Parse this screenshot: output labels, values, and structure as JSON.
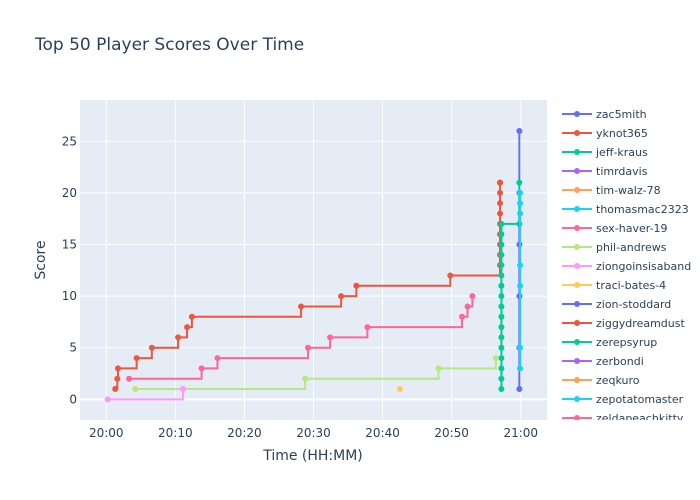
{
  "chart_data": {
    "type": "line",
    "title": "Top 50 Player Scores Over Time",
    "xlabel": "Time (HH:MM)",
    "ylabel": "Score",
    "x_ticks": [
      "20:00",
      "20:10",
      "20:20",
      "20:30",
      "20:40",
      "20:50",
      "21:00"
    ],
    "y_ticks": [
      0,
      5,
      10,
      15,
      20,
      25
    ],
    "x_range_minutes": [
      -3.8,
      63.8
    ],
    "y_range": [
      -2,
      29
    ],
    "x_unit": "minutes after 20:00",
    "line_shape": "step-after",
    "grid": true,
    "legend_position": "right",
    "series": [
      {
        "name": "zac5mith",
        "color": "#636efa",
        "x": [
          59.8,
          59.8,
          59.8,
          59.8,
          59.8,
          59.8
        ],
        "y": [
          1,
          5,
          10,
          15,
          20,
          26
        ]
      },
      {
        "name": "yknot365",
        "color": "#EF553B",
        "x": [
          1.3,
          1.6,
          1.7,
          4.4,
          6.6,
          10.4,
          11.7,
          12.4,
          28.2,
          34.0,
          36.2,
          49.8,
          57.0,
          57.0,
          57.0,
          57.0,
          57.0,
          57.0,
          57.0,
          57.0,
          57.0,
          57.0
        ],
        "y": [
          1,
          2,
          3,
          4,
          5,
          6,
          7,
          8,
          9,
          10,
          11,
          12,
          13,
          14,
          15,
          16,
          17,
          18,
          19,
          20,
          21,
          21
        ]
      },
      {
        "name": "jeff-kraus",
        "color": "#00cc96",
        "x": [
          57.2,
          57.2,
          57.2,
          57.2,
          57.2,
          57.2,
          57.2,
          57.2,
          57.2,
          57.2,
          57.2,
          57.2,
          57.2,
          57.2,
          57.2,
          57.2,
          57.2,
          59.8,
          59.8
        ],
        "y": [
          1,
          2,
          3,
          4,
          5,
          6,
          7,
          8,
          9,
          10,
          11,
          12,
          13,
          14,
          15,
          16,
          17,
          17,
          21
        ]
      },
      {
        "name": "timrdavis",
        "color": "#ab63fa",
        "x": [],
        "y": []
      },
      {
        "name": "tim-walz-78",
        "color": "#FFA15A",
        "x": [],
        "y": []
      },
      {
        "name": "thomasmac2323",
        "color": "#19d3f3",
        "x": [
          59.9,
          59.9,
          59.9,
          59.9,
          59.9,
          59.9,
          59.9
        ],
        "y": [
          3,
          5,
          11,
          13,
          18,
          19,
          20
        ]
      },
      {
        "name": "sex-haver-19",
        "color": "#FF6692",
        "x": [
          3.3,
          13.8,
          16.1,
          29.2,
          32.4,
          37.8,
          51.5,
          52.3,
          53.0
        ],
        "y": [
          2,
          3,
          4,
          5,
          6,
          7,
          8,
          9,
          10
        ]
      },
      {
        "name": "phil-andrews",
        "color": "#B6E880",
        "x": [
          4.2,
          28.8,
          48.1,
          56.4
        ],
        "y": [
          1,
          2,
          3,
          4
        ]
      },
      {
        "name": "ziongoinsisaband",
        "color": "#FF97FF",
        "x": [
          0.2,
          11.1
        ],
        "y": [
          0,
          1
        ]
      },
      {
        "name": "traci-bates-4",
        "color": "#FECB52",
        "x": [
          42.5
        ],
        "y": [
          1
        ]
      },
      {
        "name": "zion-stoddard",
        "color": "#636efa",
        "x": [],
        "y": []
      },
      {
        "name": "ziggydreamdust",
        "color": "#EF553B",
        "x": [],
        "y": []
      },
      {
        "name": "zerepsyrup",
        "color": "#00cc96",
        "x": [],
        "y": []
      },
      {
        "name": "zerbondi",
        "color": "#ab63fa",
        "x": [],
        "y": []
      },
      {
        "name": "zeqkuro",
        "color": "#FFA15A",
        "x": [],
        "y": []
      },
      {
        "name": "zepotatomaster",
        "color": "#19d3f3",
        "x": [],
        "y": []
      },
      {
        "name": "zeldapeachkitty",
        "color": "#FF6692",
        "x": [],
        "y": []
      }
    ]
  }
}
